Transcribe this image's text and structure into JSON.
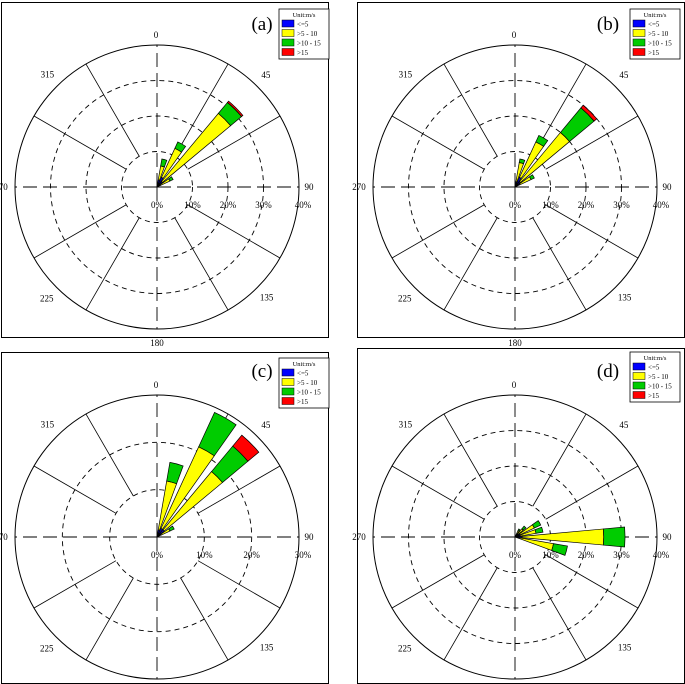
{
  "legend": {
    "title": "Unit:m/s",
    "items": [
      "<=5",
      ">5 - 10",
      ">10 - 15",
      ">15"
    ]
  },
  "colors": {
    "<=5": "#0000ff",
    ">5 - 10": "#ffff00",
    ">10 - 15": "#00cc00",
    ">15": "#ff0000"
  },
  "direction_labels": [
    "0",
    "45",
    "90",
    "135",
    "180",
    "225",
    "270",
    "315"
  ],
  "radial_labels": [
    "0%",
    "10%",
    "20%",
    "30%",
    "40%"
  ],
  "chart_data": [
    {
      "type": "wind-rose",
      "panel_label": "(a)",
      "r_max": 40,
      "legend_position": "top-right",
      "sectors_deg": [
        15,
        30,
        45,
        60
      ],
      "values_cumulative_pct": [
        [
          2,
          6,
          8,
          8
        ],
        [
          3,
          12,
          14,
          14
        ],
        [
          2,
          27,
          31,
          31.5
        ],
        [
          1,
          4,
          5,
          5
        ]
      ]
    },
    {
      "type": "wind-rose",
      "panel_label": "(b)",
      "r_max": 40,
      "legend_position": "top-right",
      "sectors_deg": [
        15,
        30,
        45,
        60
      ],
      "values_cumulative_pct": [
        [
          1.5,
          7,
          8,
          8
        ],
        [
          3,
          14,
          16,
          16
        ],
        [
          2,
          20,
          29,
          30
        ],
        [
          1.5,
          5,
          6,
          6
        ]
      ]
    },
    {
      "type": "wind-rose",
      "panel_label": "(c)",
      "r_max": 30,
      "legend_position": "top-right",
      "sectors_deg": [
        15,
        30,
        45,
        60
      ],
      "values_cumulative_pct": [
        [
          1.5,
          12,
          16,
          16
        ],
        [
          2,
          21,
          29,
          29
        ],
        [
          2,
          18,
          25,
          28
        ],
        [
          1,
          3,
          4,
          4
        ]
      ]
    },
    {
      "type": "wind-rose",
      "panel_label": "(d)",
      "r_max": 40,
      "legend_position": "top-right",
      "sectors_deg": [
        30,
        45,
        60,
        75,
        90,
        105
      ],
      "values_cumulative_pct": [
        [
          0.5,
          2,
          2.5,
          2.5
        ],
        [
          1,
          3,
          4,
          4
        ],
        [
          1.5,
          6,
          8,
          8
        ],
        [
          1.5,
          6,
          8,
          8
        ],
        [
          2,
          25,
          31,
          31
        ],
        [
          1,
          11,
          15,
          15
        ]
      ]
    }
  ]
}
